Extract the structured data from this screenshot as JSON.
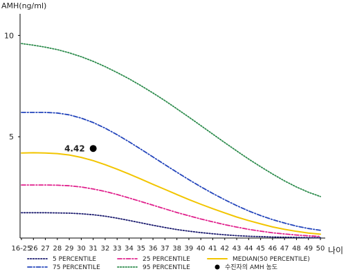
{
  "chart_data": {
    "type": "line",
    "ylabel": "AMH(ng/ml)",
    "xlabel": "나이",
    "x_categories": [
      "16-25",
      "26",
      "27",
      "28",
      "29",
      "30",
      "31",
      "32",
      "33",
      "34",
      "35",
      "36",
      "37",
      "38",
      "39",
      "40",
      "41",
      "42",
      "43",
      "44",
      "45",
      "46",
      "47",
      "48",
      "49",
      "50"
    ],
    "y_ticks": [
      5,
      10
    ],
    "ylim": [
      0,
      11
    ],
    "grid": false,
    "legend_position": "bottom",
    "series": [
      {
        "name": "5 PERCENTILE",
        "color": "#1a1a6e",
        "dash": "dotted",
        "values": [
          1.25,
          1.25,
          1.25,
          1.24,
          1.23,
          1.2,
          1.15,
          1.08,
          0.98,
          0.87,
          0.75,
          0.63,
          0.52,
          0.42,
          0.34,
          0.27,
          0.21,
          0.16,
          0.12,
          0.09,
          0.07,
          0.05,
          0.04,
          0.03,
          0.02,
          0.02
        ]
      },
      {
        "name": "25 PERCENTILE",
        "color": "#e0208c",
        "dash": "dashdot",
        "values": [
          2.62,
          2.62,
          2.62,
          2.61,
          2.58,
          2.52,
          2.42,
          2.3,
          2.15,
          1.98,
          1.8,
          1.62,
          1.44,
          1.26,
          1.1,
          0.94,
          0.8,
          0.66,
          0.54,
          0.43,
          0.34,
          0.26,
          0.2,
          0.15,
          0.11,
          0.08
        ]
      },
      {
        "name": "MEDIAN(50 PERCENTILE)",
        "color": "#f2c500",
        "dash": "solid",
        "values": [
          4.2,
          4.21,
          4.2,
          4.17,
          4.1,
          3.98,
          3.82,
          3.62,
          3.4,
          3.16,
          2.91,
          2.65,
          2.4,
          2.15,
          1.9,
          1.67,
          1.45,
          1.24,
          1.04,
          0.86,
          0.7,
          0.55,
          0.43,
          0.33,
          0.25,
          0.19
        ]
      },
      {
        "name": "75 PERCENTILE",
        "color": "#2244bb",
        "dash": "dashdot",
        "values": [
          6.2,
          6.2,
          6.2,
          6.17,
          6.08,
          5.92,
          5.7,
          5.42,
          5.1,
          4.75,
          4.38,
          4.0,
          3.62,
          3.25,
          2.88,
          2.53,
          2.2,
          1.89,
          1.6,
          1.34,
          1.11,
          0.91,
          0.74,
          0.59,
          0.47,
          0.38
        ]
      },
      {
        "name": "95 PERCENTILE",
        "color": "#2a8a4a",
        "dash": "dotted",
        "values": [
          9.6,
          9.52,
          9.42,
          9.3,
          9.14,
          8.95,
          8.72,
          8.46,
          8.17,
          7.86,
          7.52,
          7.16,
          6.78,
          6.38,
          5.97,
          5.55,
          5.13,
          4.71,
          4.3,
          3.9,
          3.52,
          3.16,
          2.82,
          2.52,
          2.26,
          2.05
        ]
      }
    ],
    "marker": {
      "name": "수진자의 AMH 농도",
      "x": "31",
      "y": 4.42,
      "label": "4.42",
      "color": "#000000"
    }
  }
}
